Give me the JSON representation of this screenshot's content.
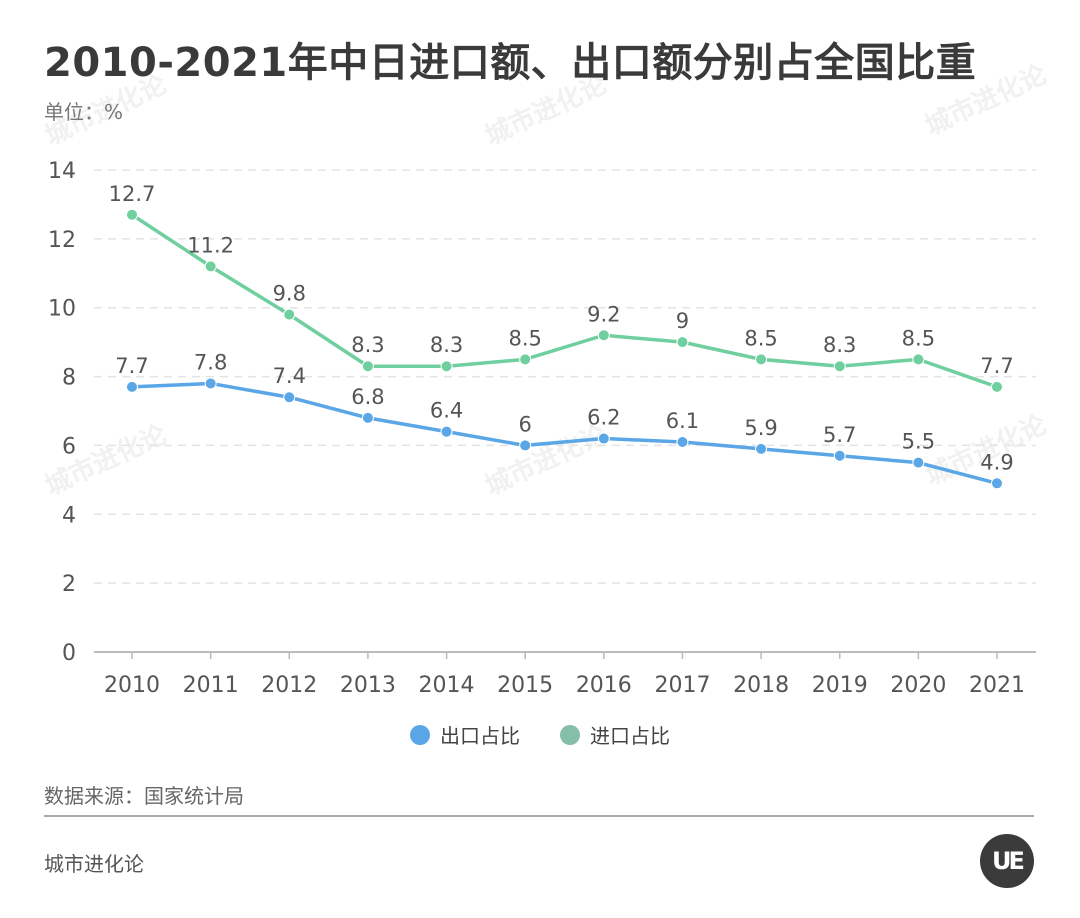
{
  "page": {
    "title": "2010-2021年中日进口额、出口额分别占全国比重",
    "unit": "单位：%",
    "source": "数据来源：国家统计局",
    "brand": "城市进化论",
    "logo_text": "UE",
    "watermark": "城市进化论"
  },
  "colors": {
    "export": "#5aa6e6",
    "import": "#6fcf9e",
    "grid": "#e3e3e3",
    "axis": "#bbbbbb"
  },
  "chart_data": {
    "type": "line",
    "title": "2010-2021年中日进口额、出口额分别占全国比重",
    "xlabel": "",
    "ylabel": "单位：%",
    "categories": [
      "2010",
      "2011",
      "2012",
      "2013",
      "2014",
      "2015",
      "2016",
      "2017",
      "2018",
      "2019",
      "2020",
      "2021"
    ],
    "ylim": [
      0,
      14
    ],
    "yticks": [
      0,
      2,
      4,
      6,
      8,
      10,
      12,
      14
    ],
    "grid": true,
    "legend_position": "bottom",
    "series": [
      {
        "name": "出口占比",
        "key": "export",
        "values": [
          7.7,
          7.8,
          7.4,
          6.8,
          6.4,
          6,
          6.2,
          6.1,
          5.9,
          5.7,
          5.5,
          4.9
        ]
      },
      {
        "name": "进口占比",
        "key": "import",
        "values": [
          12.7,
          11.2,
          9.8,
          8.3,
          8.3,
          8.5,
          9.2,
          9,
          8.5,
          8.3,
          8.5,
          7.7
        ]
      }
    ]
  }
}
